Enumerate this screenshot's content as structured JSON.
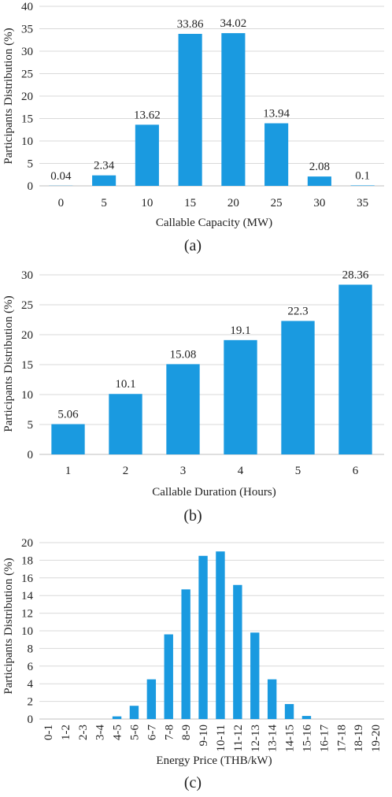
{
  "chart_data": [
    {
      "type": "bar",
      "panel_label": "(a)",
      "xlabel": "Callable Capacity (MW)",
      "ylabel": "Participants Distribution (%)",
      "categories": [
        "0",
        "5",
        "10",
        "15",
        "20",
        "25",
        "30",
        "35"
      ],
      "values": [
        0.04,
        2.34,
        13.62,
        33.86,
        34.02,
        13.94,
        2.08,
        0.1
      ],
      "data_labels": [
        "0.04",
        "2.34",
        "13.62",
        "33.86",
        "34.02",
        "13.94",
        "2.08",
        "0.1"
      ],
      "ylim": [
        0,
        40
      ],
      "yticks": [
        0,
        5,
        10,
        15,
        20,
        25,
        30,
        35,
        40
      ],
      "grid": true,
      "color": "#1a9ae0"
    },
    {
      "type": "bar",
      "panel_label": "(b)",
      "xlabel": "Callable Duration (Hours)",
      "ylabel": "Participants Distribution (%)",
      "categories": [
        "1",
        "2",
        "3",
        "4",
        "5",
        "6"
      ],
      "values": [
        5.06,
        10.1,
        15.08,
        19.1,
        22.3,
        28.36
      ],
      "data_labels": [
        "5.06",
        "10.1",
        "15.08",
        "19.1",
        "22.3",
        "28.36"
      ],
      "ylim": [
        0,
        30
      ],
      "yticks": [
        0,
        5,
        10,
        15,
        20,
        25,
        30
      ],
      "grid": true,
      "color": "#1a9ae0"
    },
    {
      "type": "bar",
      "panel_label": "(c)",
      "xlabel": "Energy Price (THB/kW)",
      "ylabel": "Participants Distribution (%)",
      "categories": [
        "0-1",
        "1-2",
        "2-3",
        "3-4",
        "4-5",
        "5-6",
        "6-7",
        "7-8",
        "8-9",
        "9-10",
        "10-11",
        "11-12",
        "12-13",
        "13-14",
        "14-15",
        "15-16",
        "16-17",
        "17-18",
        "18-19",
        "19-20"
      ],
      "values": [
        0,
        0,
        0,
        0,
        0.3,
        1.5,
        4.5,
        9.6,
        14.7,
        18.5,
        19.0,
        15.2,
        9.8,
        4.5,
        1.7,
        0.35,
        0,
        0,
        0,
        0
      ],
      "ylim": [
        0,
        20
      ],
      "yticks": [
        0,
        2,
        4,
        6,
        8,
        10,
        12,
        14,
        16,
        18,
        20
      ],
      "grid": true,
      "color": "#1a9ae0"
    }
  ]
}
